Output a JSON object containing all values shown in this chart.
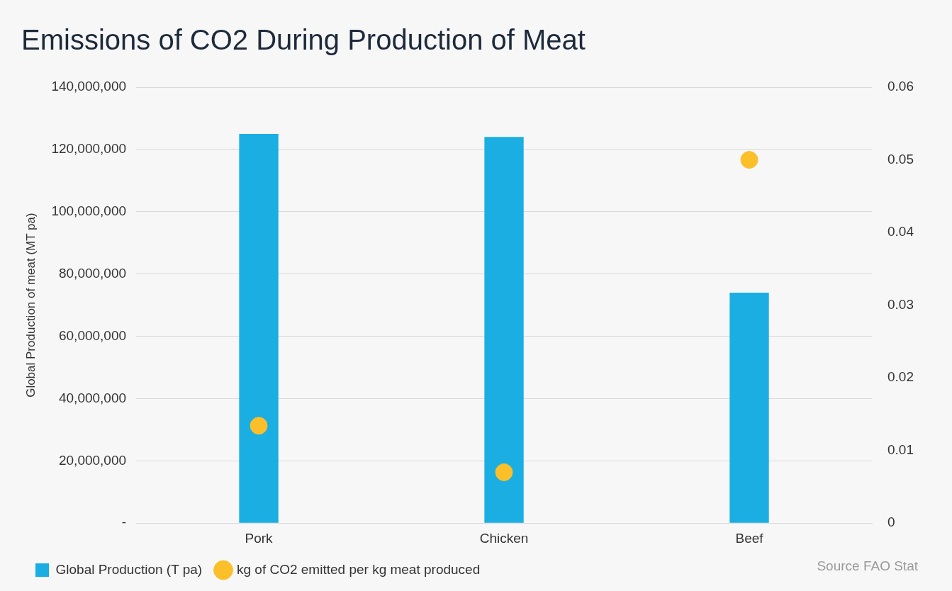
{
  "chart_data": {
    "type": "bar",
    "title": "Emissions of CO2 During Production of Meat",
    "ylabel": "Global Production of meat (MT pa)",
    "categories": [
      "Pork",
      "Chicken",
      "Beef"
    ],
    "series": [
      {
        "name": "Global Production (T pa)",
        "color": "#1aaee3",
        "values": [
          125000000,
          124000000,
          74000000
        ]
      },
      {
        "name": "kg of CO2 emitted per kg meat produced",
        "type": "scatter",
        "axis": "y2",
        "marker": "circle",
        "color": "#fbbf2a",
        "x": [
          "Pork",
          "Chicken",
          "Beef"
        ],
        "values": [
          0.0134,
          0.007,
          0.05
        ]
      }
    ],
    "ylim": [
      0,
      140000000
    ],
    "yticks": [
      {
        "value": 0,
        "label": "-"
      },
      {
        "value": 20000000,
        "label": "20,000,000"
      },
      {
        "value": 40000000,
        "label": "40,000,000"
      },
      {
        "value": 60000000,
        "label": "60,000,000"
      },
      {
        "value": 80000000,
        "label": "80,000,000"
      },
      {
        "value": 100000000,
        "label": "100,000,000"
      },
      {
        "value": 120000000,
        "label": "120,000,000"
      },
      {
        "value": 140000000,
        "label": "140,000,000"
      }
    ],
    "y2lim": [
      0,
      0.06
    ],
    "y2ticks": [
      0,
      0.01,
      0.02,
      0.03,
      0.04,
      0.05,
      0.06
    ],
    "grid": "y",
    "legend": "bottom left",
    "annotations": [
      "Source FAO Stat"
    ]
  }
}
